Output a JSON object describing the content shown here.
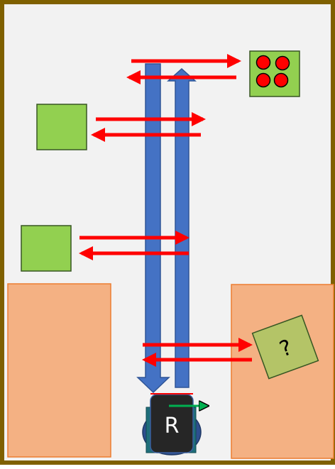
{
  "diagram": {
    "robot_label": "R",
    "unknown_label": "?",
    "colors": {
      "frame": "#7f6000",
      "background": "#f2f2f2",
      "green_block": "#92d050",
      "green_block_stroke": "#375623",
      "orange_zone": "#f4b183",
      "orange_zone_stroke": "#ed7d31",
      "unknown_block": "#b4c467",
      "big_arrow": "#4472c4",
      "big_arrow_stroke": "#2f5597",
      "red_arrow": "#ff0000",
      "dot": "#ff0000",
      "robot_body": "#262626",
      "robot_wheel": "#1f3864",
      "robot_base": "#1f6f7a",
      "heading_arrow": "#00b050"
    }
  }
}
